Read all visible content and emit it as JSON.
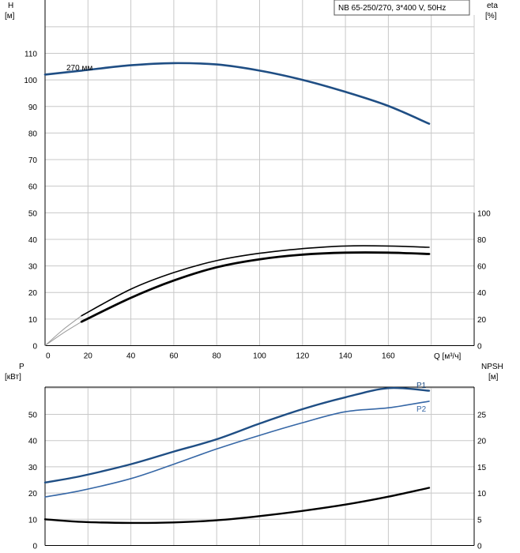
{
  "legend_box": "NB 65-250/270, 3*400 V, 50Hz",
  "colors": {
    "head": "#1f4e84",
    "p1": "#1f4e84",
    "p2": "#3667a6",
    "eta": "#000000",
    "npsh": "#000000",
    "grid": "#c8c8c8",
    "thin": "#9a9a9a"
  },
  "chart_data": [
    {
      "type": "line",
      "title": "",
      "x_axis": {
        "label": "Q [м³/ч]",
        "ticks": [
          0,
          20,
          40,
          60,
          80,
          100,
          120,
          140,
          160
        ],
        "range": [
          0,
          200
        ]
      },
      "y_left": {
        "label_top": "H",
        "label_unit": "[м]",
        "ticks": [
          0,
          10,
          20,
          30,
          40,
          50,
          60,
          70,
          80,
          90,
          100,
          110
        ],
        "range": [
          0,
          120
        ]
      },
      "y_right": {
        "label_top": "eta",
        "label_unit": "[%]",
        "ticks": [
          0,
          20,
          40,
          60,
          80,
          100
        ],
        "range": [
          0,
          240
        ]
      },
      "grid": true,
      "series": [
        {
          "name": "270 мм",
          "axis": "left",
          "color": "#1f4e84",
          "x": [
            0,
            17,
            40,
            60,
            80,
            100,
            120,
            140,
            160,
            179
          ],
          "y": [
            102,
            103.5,
            105.5,
            106.3,
            105.8,
            103.5,
            100,
            95.5,
            90.2,
            83.5
          ]
        },
        {
          "name": "",
          "axis": "right",
          "color": "#000000",
          "x": [
            17,
            40,
            60,
            80,
            100,
            120,
            140,
            160,
            179
          ],
          "y": [
            18,
            36,
            49,
            59,
            65,
            68.5,
            70,
            70,
            69
          ]
        },
        {
          "name": "",
          "axis": "right",
          "color": "#000000",
          "x": [
            17,
            40,
            60,
            80,
            100,
            120,
            140,
            160,
            179
          ],
          "y": [
            22.5,
            42.5,
            55,
            64,
            69.5,
            73,
            75,
            75,
            74
          ]
        }
      ]
    },
    {
      "type": "line",
      "title": "",
      "x_axis": {
        "range": [
          0,
          200
        ]
      },
      "y_left": {
        "label_top": "P",
        "label_unit": "[кВт]",
        "ticks": [
          0,
          10,
          20,
          30,
          40,
          50
        ],
        "range": [
          0,
          60
        ]
      },
      "y_right": {
        "label_top": "NPSH",
        "label_unit": "[м]",
        "ticks": [
          0,
          5,
          10,
          15,
          20,
          25
        ],
        "range": [
          0,
          30
        ]
      },
      "grid": true,
      "series": [
        {
          "name": "P1",
          "axis": "left",
          "color": "#1f4e84",
          "x": [
            0,
            17,
            40,
            60,
            80,
            100,
            120,
            140,
            160,
            179
          ],
          "y": [
            24,
            26.5,
            31,
            35.8,
            40.5,
            46.5,
            52,
            56.5,
            60,
            59
          ]
        },
        {
          "name": "P2",
          "axis": "left",
          "color": "#3667a6",
          "x": [
            0,
            17,
            40,
            60,
            80,
            100,
            120,
            140,
            160,
            179
          ],
          "y": [
            18.5,
            21,
            25.5,
            31,
            36.8,
            42,
            46.8,
            51,
            52.5,
            55
          ]
        },
        {
          "name": "",
          "axis": "right",
          "color": "#000000",
          "x": [
            0,
            17,
            40,
            60,
            80,
            100,
            120,
            140,
            160,
            179
          ],
          "y": [
            5,
            4.5,
            4.3,
            4.4,
            4.8,
            5.6,
            6.6,
            7.8,
            9.3,
            11
          ]
        }
      ]
    }
  ]
}
